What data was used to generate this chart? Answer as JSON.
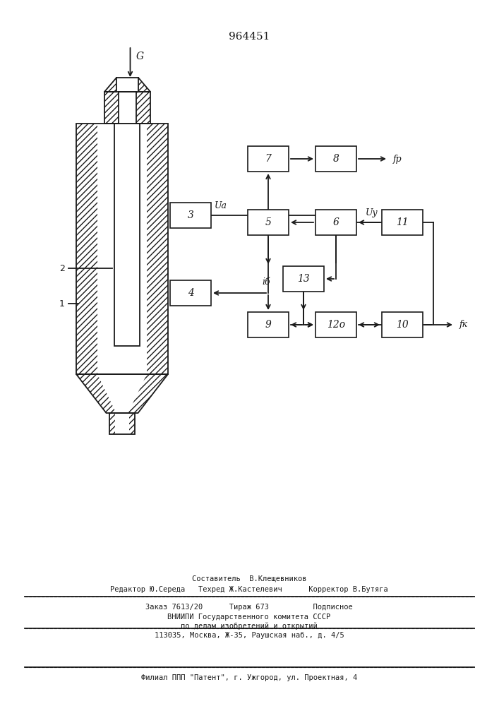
{
  "title": "964451",
  "bg_color": "#ffffff",
  "line_color": "#1a1a1a",
  "footer": {
    "line1": "Составитель  В.Клещевников",
    "line2": "Редактор Ю.Середа   Техред Ж.Кастелевич      Корректор В.Бутяга",
    "line3": "Заказ 7613/20      Тираж 673          Подписное",
    "line4": "ВНИИПИ Государственного комитета СССР",
    "line5": "по делам изобретений и открытий",
    "line6": "113035, Москва, Ж-35, Раушская наб., д. 4/5",
    "line7": "Филиал ППП \"Патент\", г. Ужгород, ул. Проектная, 4"
  }
}
